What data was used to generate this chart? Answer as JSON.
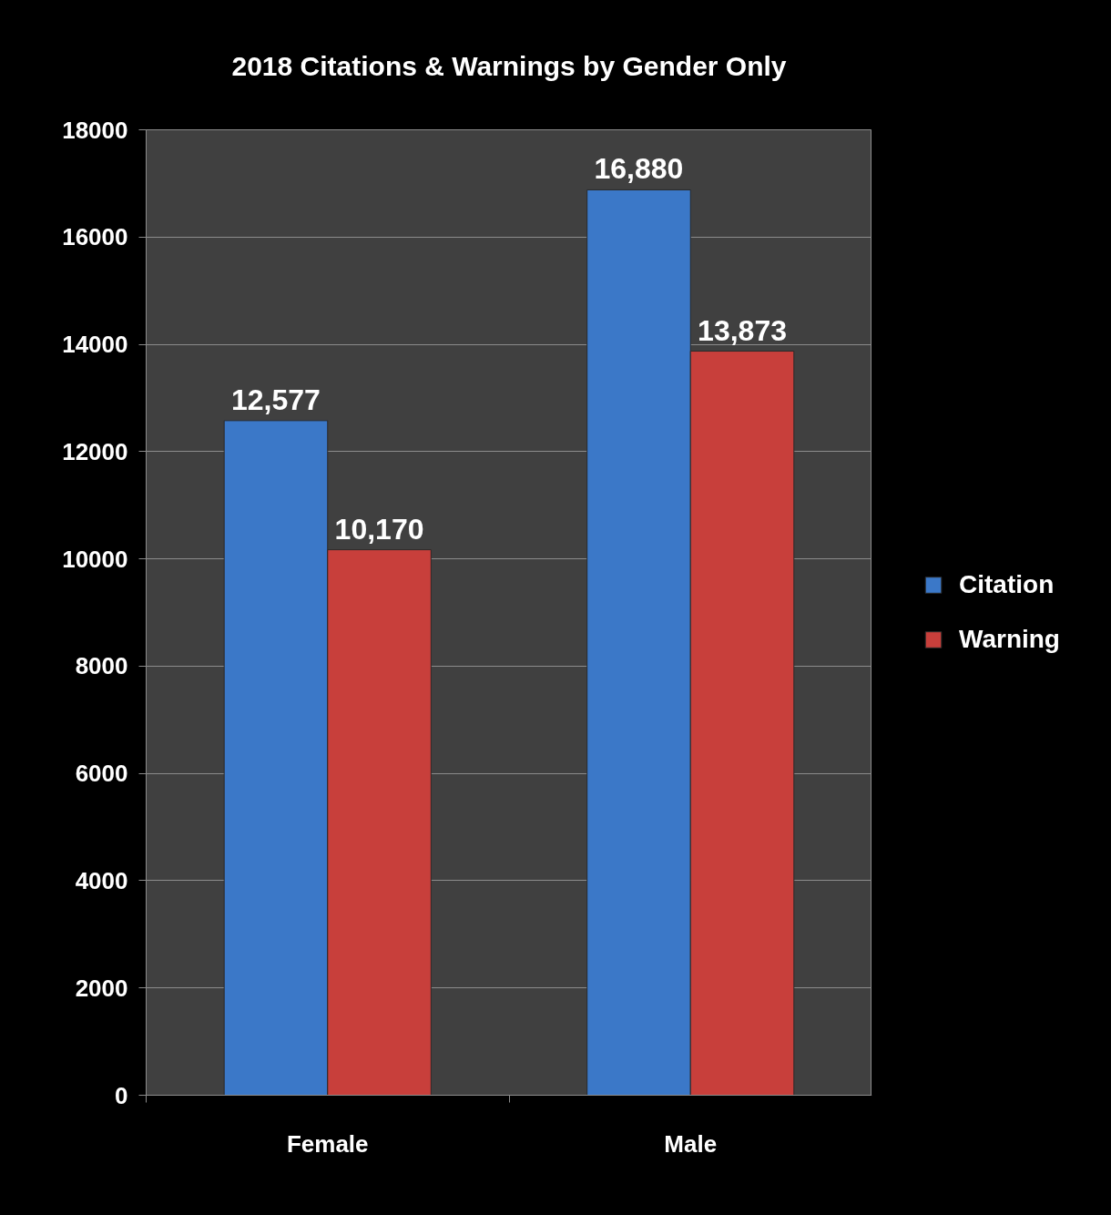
{
  "chart_data": {
    "type": "bar",
    "title": "2018 Citations & Warnings by Gender Only",
    "categories": [
      "Female",
      "Male"
    ],
    "series": [
      {
        "name": "Citation",
        "color": "#3b78c8",
        "values": [
          12577,
          16880
        ],
        "value_labels": [
          "12,577",
          "16,880"
        ]
      },
      {
        "name": "Warning",
        "color": "#c83f3b",
        "values": [
          10170,
          13873
        ],
        "value_labels": [
          "10,170",
          "13,873"
        ]
      }
    ],
    "ylim": [
      0,
      18000
    ],
    "yticks": [
      0,
      2000,
      4000,
      6000,
      8000,
      10000,
      12000,
      14000,
      16000,
      18000
    ],
    "grid": "y",
    "legend": "right"
  }
}
